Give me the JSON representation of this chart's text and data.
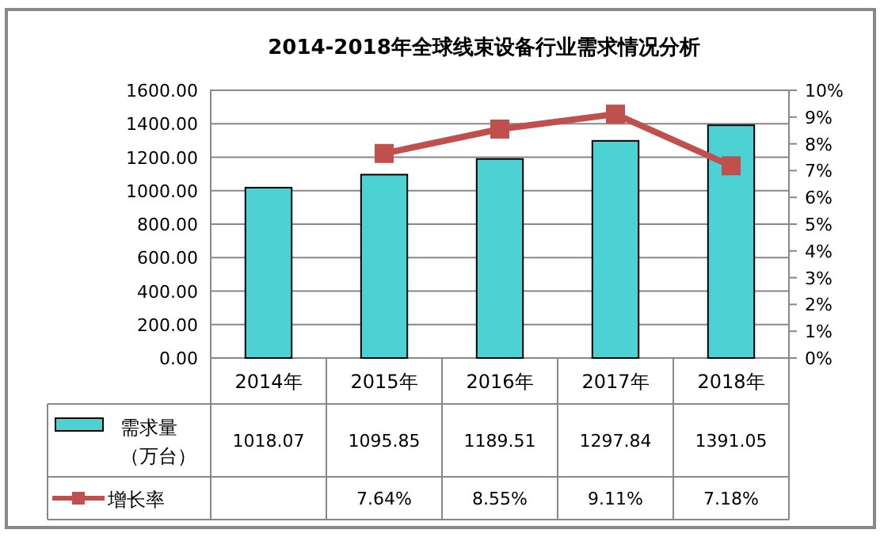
{
  "chart_data": {
    "type": "bar",
    "title": "2014-2018年全球线束设备行业需求情况分析",
    "categories": [
      "2014年",
      "2015年",
      "2016年",
      "2017年",
      "2018年"
    ],
    "series": [
      {
        "name": "需求量（万台）",
        "color": "#4dd2d4",
        "values": [
          1018.07,
          1095.85,
          1189.51,
          1297.84,
          1391.05
        ],
        "value_labels": [
          "1018.07",
          "1095.85",
          "1189.51",
          "1297.84",
          "1391.05"
        ]
      },
      {
        "name": "增长率",
        "type": "line",
        "axis": "y2",
        "color": "#c0504d",
        "values": [
          null,
          7.64,
          8.55,
          9.11,
          7.18
        ],
        "value_labels": [
          null,
          "7.64%",
          "8.55%",
          "9.11%",
          "7.18%"
        ]
      }
    ],
    "ylim": [
      0,
      1600
    ],
    "yticks": [
      {
        "value": 0,
        "label": "0.00"
      },
      {
        "value": 200,
        "label": "200.00"
      },
      {
        "value": 400,
        "label": "400.00"
      },
      {
        "value": 600,
        "label": "600.00"
      },
      {
        "value": 800,
        "label": "800.00"
      },
      {
        "value": 1000,
        "label": "1000.00"
      },
      {
        "value": 1200,
        "label": "1200.00"
      },
      {
        "value": 1400,
        "label": "1400.00"
      },
      {
        "value": 1600,
        "label": "1600.00"
      }
    ],
    "y2lim": [
      0,
      10
    ],
    "y2ticks": [
      {
        "value": 0,
        "label": "0%"
      },
      {
        "value": 1,
        "label": "1%"
      },
      {
        "value": 2,
        "label": "2%"
      },
      {
        "value": 3,
        "label": "3%"
      },
      {
        "value": 4,
        "label": "4%"
      },
      {
        "value": 5,
        "label": "5%"
      },
      {
        "value": 6,
        "label": "6%"
      },
      {
        "value": 7,
        "label": "7%"
      },
      {
        "value": 8,
        "label": "8%"
      },
      {
        "value": 9,
        "label": "9%"
      },
      {
        "value": 10,
        "label": "10%"
      }
    ],
    "grid": "y",
    "marker": "square",
    "line_style": "solid",
    "legend": "bottom"
  }
}
